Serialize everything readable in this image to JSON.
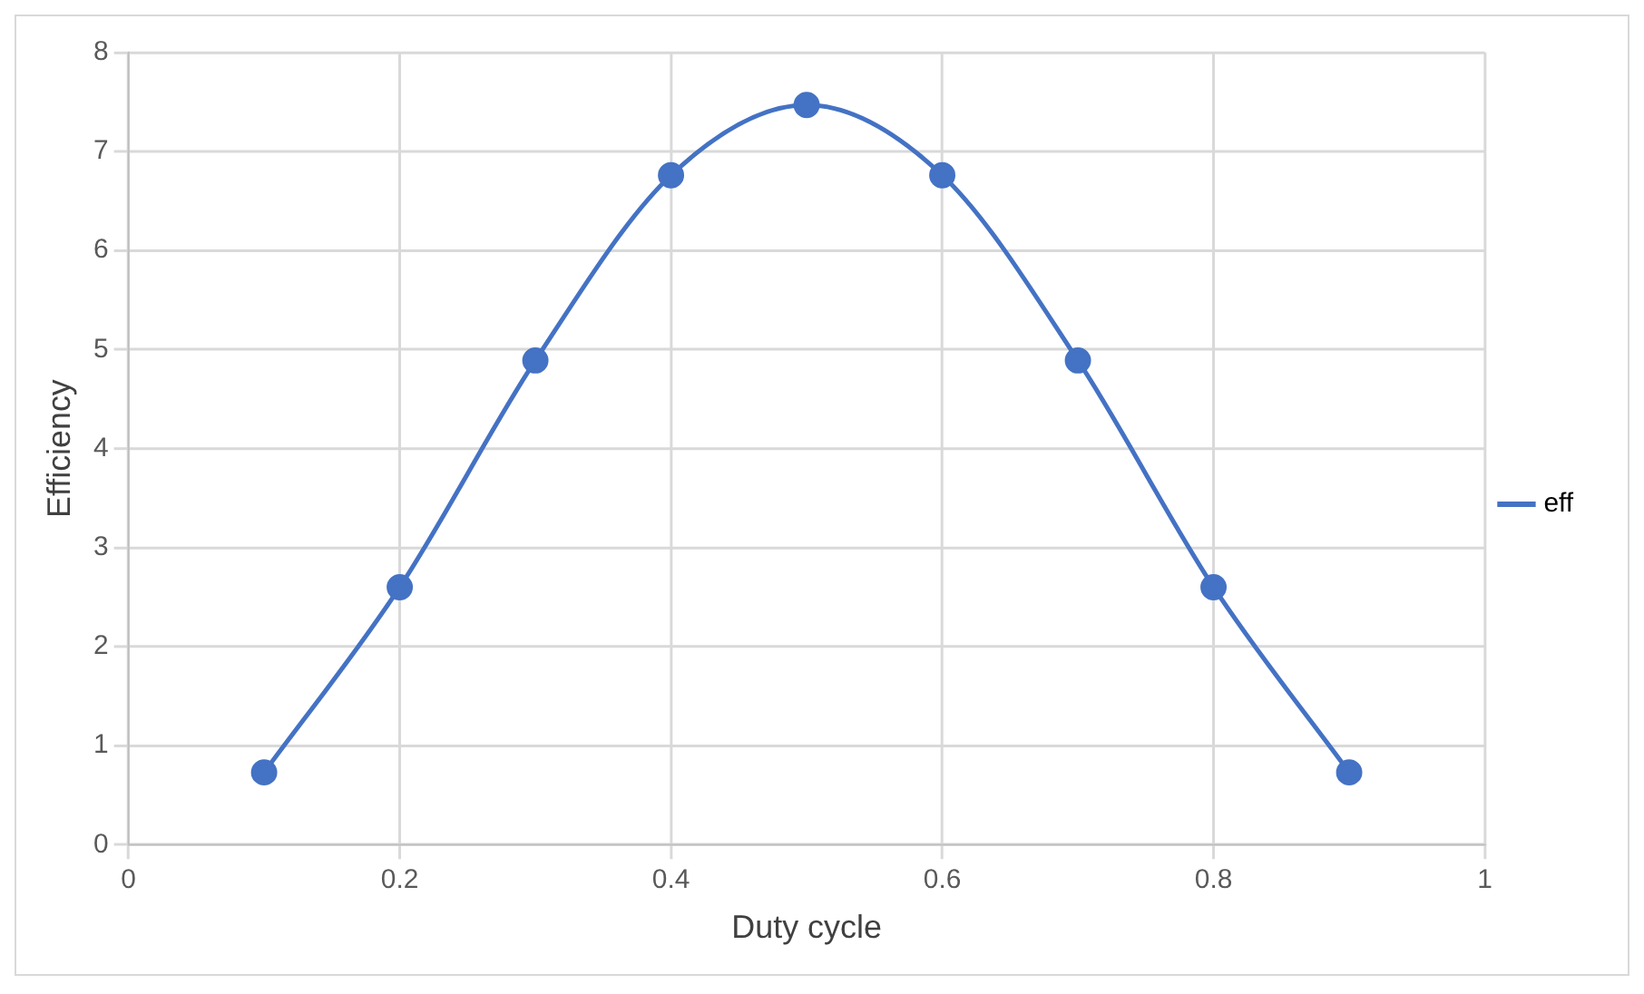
{
  "chart_data": {
    "type": "line",
    "xlabel": "Duty cycle",
    "ylabel": "Efficiency",
    "x": [
      0.1,
      0.2,
      0.3,
      0.4,
      0.5,
      0.6,
      0.7,
      0.8,
      0.9
    ],
    "series": [
      {
        "name": "eff",
        "color": "#4472c4",
        "values": [
          0.73,
          2.6,
          4.89,
          6.76,
          7.47,
          6.76,
          4.89,
          2.6,
          0.73
        ]
      }
    ],
    "xlim": [
      0,
      1
    ],
    "xticks": [
      0,
      0.2,
      0.4,
      0.6,
      0.8,
      1
    ],
    "ylim": [
      0,
      8
    ],
    "yticks": [
      0,
      1,
      2,
      3,
      4,
      5,
      6,
      7,
      8
    ],
    "grid": true,
    "legend": "right",
    "marker": "circle",
    "line_style": "solid"
  }
}
